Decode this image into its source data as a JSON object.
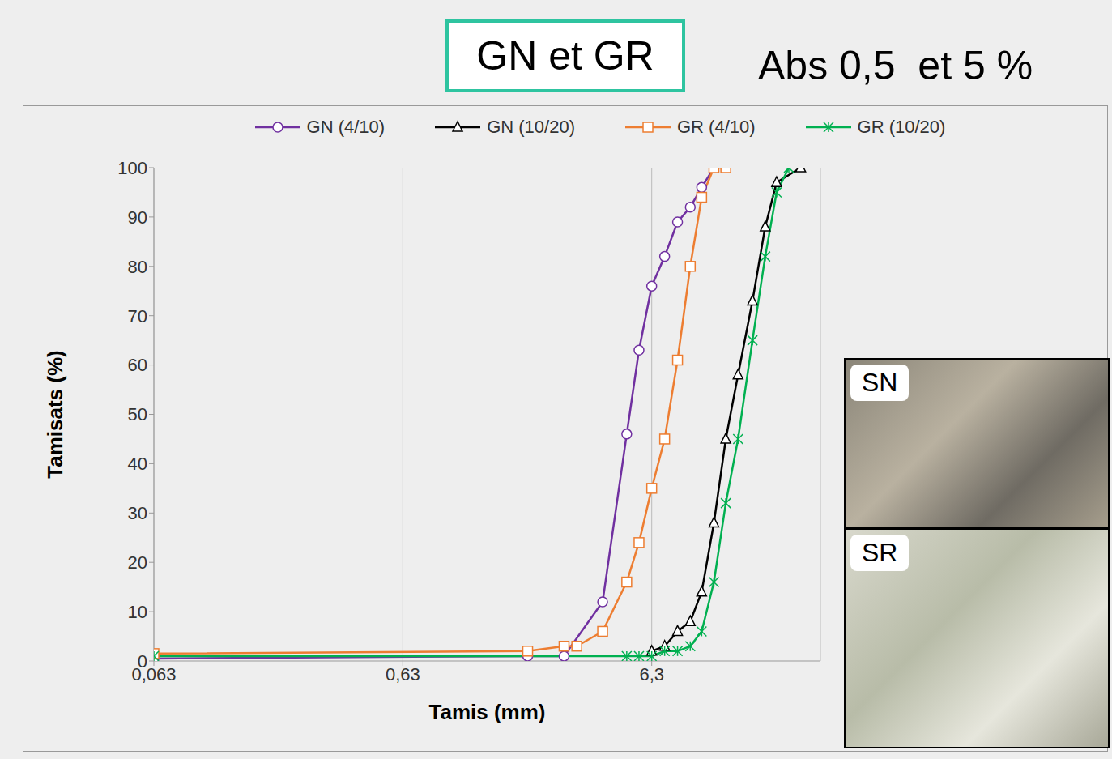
{
  "chart_data": {
    "type": "line",
    "title": "GN et GR",
    "subtitle": "Abs 0,5  et 5 %",
    "annotations": [
      "SN",
      "SR"
    ],
    "x_label": "Tamis (mm)",
    "y_label": "Tamisats (%)",
    "log": "x",
    "grid": true,
    "legend": "top",
    "xlim": [
      0.063,
      30
    ],
    "xticks": [
      {
        "value": 0.063,
        "label": "0,063"
      },
      {
        "value": 0.63,
        "label": "0,63"
      },
      {
        "value": 6.3,
        "label": "6,3"
      }
    ],
    "ylim": [
      0,
      100
    ],
    "yticks": [
      0,
      10,
      20,
      30,
      40,
      50,
      60,
      70,
      80,
      90,
      100
    ],
    "series": [
      {
        "name": "GN (4/10)",
        "color": "#7030a0",
        "marker": "circle",
        "x": [
          0.063,
          2,
          2.8,
          4,
          5,
          5.6,
          6.3,
          7.1,
          8,
          9,
          10,
          11.2
        ],
        "values": [
          0.5,
          1,
          1,
          12,
          46,
          63,
          76,
          82,
          89,
          92,
          96,
          100
        ]
      },
      {
        "name": "GN (10/20)",
        "color": "#000000",
        "marker": "triangle",
        "x": [
          6.3,
          7.1,
          8,
          9,
          10,
          11.2,
          12.5,
          14,
          16,
          18,
          20,
          25
        ],
        "values": [
          2,
          3,
          6,
          8,
          14,
          28,
          45,
          58,
          73,
          88,
          97,
          100
        ]
      },
      {
        "name": "GR (4/10)",
        "color": "#ed7d31",
        "marker": "square",
        "x": [
          0.063,
          2,
          2.8,
          3.15,
          4,
          5,
          5.6,
          6.3,
          7.1,
          8,
          9,
          10,
          11.2,
          12.5
        ],
        "values": [
          1.5,
          2,
          3,
          3,
          6,
          16,
          24,
          35,
          45,
          61,
          80,
          94,
          100,
          100
        ]
      },
      {
        "name": "GR (10/20)",
        "color": "#00b050",
        "marker": "star",
        "x": [
          0.063,
          5,
          5.6,
          6.3,
          7.1,
          8,
          9,
          10,
          11.2,
          12.5,
          14,
          16,
          18,
          20,
          22.4
        ],
        "values": [
          1,
          1,
          1,
          1,
          2,
          2,
          3,
          6,
          16,
          32,
          45,
          65,
          82,
          95,
          100
        ]
      }
    ]
  }
}
